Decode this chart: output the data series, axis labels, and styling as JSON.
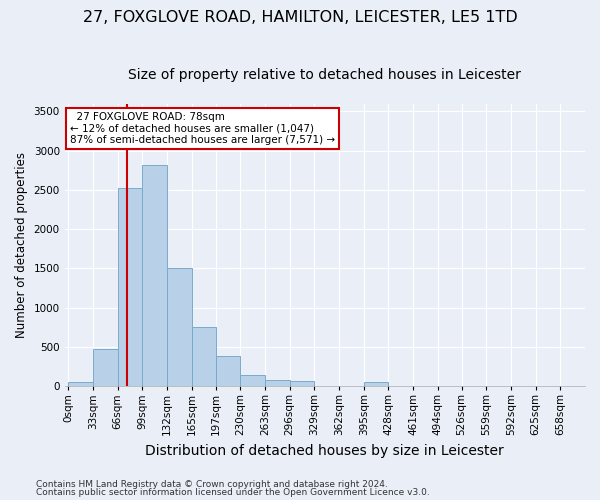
{
  "title1": "27, FOXGLOVE ROAD, HAMILTON, LEICESTER, LE5 1TD",
  "title2": "Size of property relative to detached houses in Leicester",
  "xlabel": "Distribution of detached houses by size in Leicester",
  "ylabel": "Number of detached properties",
  "footer1": "Contains HM Land Registry data © Crown copyright and database right 2024.",
  "footer2": "Contains public sector information licensed under the Open Government Licence v3.0.",
  "annotation_title": "27 FOXGLOVE ROAD: 78sqm",
  "annotation_line1": "← 12% of detached houses are smaller (1,047)",
  "annotation_line2": "87% of semi-detached houses are larger (7,571) →",
  "property_size": 78,
  "bar_color": "#b8d0e8",
  "bar_edgecolor": "#7aaaca",
  "redline_color": "#cc0000",
  "categories": [
    "0sqm",
    "33sqm",
    "66sqm",
    "99sqm",
    "132sqm",
    "165sqm",
    "197sqm",
    "230sqm",
    "263sqm",
    "296sqm",
    "329sqm",
    "362sqm",
    "395sqm",
    "428sqm",
    "461sqm",
    "494sqm",
    "526sqm",
    "559sqm",
    "592sqm",
    "625sqm",
    "658sqm"
  ],
  "bin_starts": [
    0,
    33,
    66,
    99,
    132,
    165,
    197,
    230,
    263,
    296,
    329,
    362,
    395,
    428,
    461,
    494,
    526,
    559,
    592,
    625,
    658
  ],
  "bin_width": 33,
  "values": [
    50,
    470,
    2520,
    2820,
    1500,
    750,
    380,
    140,
    80,
    60,
    0,
    0,
    55,
    0,
    0,
    0,
    0,
    0,
    0,
    0,
    0
  ],
  "ylim": [
    0,
    3600
  ],
  "yticks": [
    0,
    500,
    1000,
    1500,
    2000,
    2500,
    3000,
    3500
  ],
  "background_color": "#eaeff7",
  "plot_background": "#eaeff7",
  "grid_color": "#ffffff",
  "title1_fontsize": 11.5,
  "title2_fontsize": 10,
  "xlabel_fontsize": 10,
  "ylabel_fontsize": 8.5,
  "tick_fontsize": 7.5,
  "footer_fontsize": 6.5,
  "annot_fontsize": 7.5
}
